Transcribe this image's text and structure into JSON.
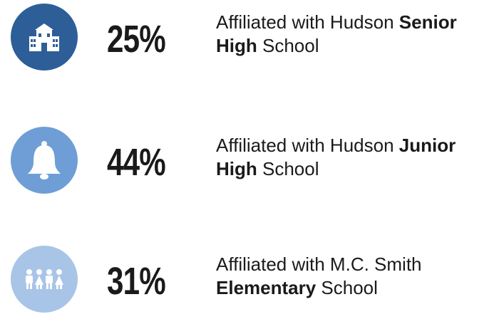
{
  "items": [
    {
      "value": "25%",
      "lines": [
        [
          {
            "text": "Affiliated with Hudson "
          },
          {
            "text": "Senior",
            "bold": true
          }
        ],
        [
          {
            "text": "High",
            "bold": true
          },
          {
            "text": " School"
          }
        ]
      ],
      "color": "#2d5e98"
    },
    {
      "value": "44%",
      "lines": [
        [
          {
            "text": "Affiliated with Hudson "
          },
          {
            "text": "Junior",
            "bold": true
          }
        ],
        [
          {
            "text": "High",
            "bold": true
          },
          {
            "text": " School"
          }
        ]
      ],
      "color": "#6e9ed5"
    },
    {
      "value": "31%",
      "lines": [
        [
          {
            "text": "Affiliated with M.C. Smith"
          }
        ],
        [
          {
            "text": "Elementary",
            "bold": true
          },
          {
            "text": " School"
          }
        ]
      ],
      "color": "#a8c5e8"
    }
  ]
}
